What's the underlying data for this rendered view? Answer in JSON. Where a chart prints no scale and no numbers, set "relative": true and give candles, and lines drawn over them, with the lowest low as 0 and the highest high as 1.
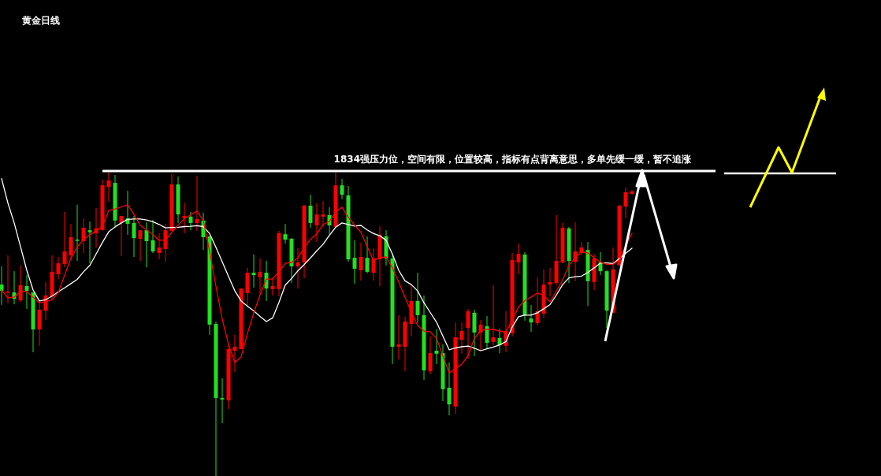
{
  "chart_data": {
    "type": "candlestick",
    "title": "黄金日线",
    "relative": true,
    "categories": [
      null,
      null,
      null,
      null,
      null,
      null,
      null,
      null,
      null,
      null,
      null,
      null,
      null,
      null,
      null,
      null,
      null,
      null,
      null,
      null,
      null,
      null,
      null,
      null,
      null,
      null,
      null,
      null,
      null,
      null,
      null,
      null,
      null,
      null,
      null,
      null,
      null,
      null,
      null,
      null,
      null,
      null,
      null,
      null,
      null,
      null,
      null,
      null,
      null,
      null,
      null,
      null,
      null,
      null,
      null,
      null,
      null,
      null,
      null,
      null,
      null,
      null,
      null,
      null,
      null,
      null,
      null,
      null,
      null,
      null,
      null,
      null,
      null,
      null,
      null,
      null,
      null,
      null,
      null,
      null,
      null,
      null,
      null,
      null,
      null,
      null,
      null,
      null,
      null,
      null,
      null,
      null,
      null,
      null,
      null,
      null,
      null,
      null,
      null,
      null,
      null
    ],
    "ohlc": [
      [
        0.631,
        0.691,
        0.564,
        0.61
      ],
      [
        0.605,
        0.727,
        0.569,
        0.608
      ],
      [
        0.605,
        0.675,
        0.566,
        0.584
      ],
      [
        0.579,
        0.694,
        0.574,
        0.629
      ],
      [
        0.626,
        0.662,
        0.551,
        0.61
      ],
      [
        0.605,
        0.605,
        0.408,
        0.483
      ],
      [
        0.483,
        0.574,
        0.429,
        0.548
      ],
      [
        0.545,
        0.639,
        0.514,
        0.595
      ],
      [
        0.592,
        0.727,
        0.582,
        0.673
      ],
      [
        0.665,
        0.722,
        0.649,
        0.701
      ],
      [
        0.699,
        0.87,
        0.688,
        0.74
      ],
      [
        0.727,
        0.831,
        0.714,
        0.787
      ],
      [
        0.779,
        0.894,
        0.709,
        0.777
      ],
      [
        0.774,
        0.849,
        0.735,
        0.818
      ],
      [
        0.81,
        0.839,
        0.701,
        0.803
      ],
      [
        0.8,
        0.883,
        0.753,
        0.816
      ],
      [
        0.81,
        0.977,
        0.81,
        0.958
      ],
      [
        0.953,
        1.0,
        0.904,
        0.974
      ],
      [
        0.966,
        0.992,
        0.823,
        0.842
      ],
      [
        0.834,
        0.857,
        0.725,
        0.857
      ],
      [
        0.849,
        0.94,
        0.795,
        0.831
      ],
      [
        0.834,
        0.857,
        0.722,
        0.784
      ],
      [
        0.782,
        0.81,
        0.709,
        0.81
      ],
      [
        0.81,
        0.836,
        0.688,
        0.774
      ],
      [
        0.777,
        0.844,
        0.735,
        0.74
      ],
      [
        0.735,
        0.8,
        0.714,
        0.753
      ],
      [
        0.748,
        0.831,
        0.706,
        0.81
      ],
      [
        0.808,
        0.995,
        0.808,
        0.961
      ],
      [
        0.961,
        0.987,
        0.834,
        0.862
      ],
      [
        0.849,
        0.901,
        0.8,
        0.857
      ],
      [
        0.855,
        0.87,
        0.81,
        0.834
      ],
      [
        0.834,
        0.99,
        0.808,
        0.847
      ],
      [
        0.842,
        0.868,
        0.745,
        0.787
      ],
      [
        0.79,
        0.79,
        0.465,
        0.499
      ],
      [
        0.501,
        0.509,
        0.0,
        0.257
      ],
      [
        0.257,
        0.322,
        0.174,
        0.252
      ],
      [
        0.249,
        0.434,
        0.221,
        0.418
      ],
      [
        0.413,
        0.465,
        0.343,
        0.426
      ],
      [
        0.418,
        0.618,
        0.418,
        0.618
      ],
      [
        0.603,
        0.686,
        0.556,
        0.67
      ],
      [
        0.67,
        0.73,
        0.621,
        0.662
      ],
      [
        0.655,
        0.717,
        0.6,
        0.673
      ],
      [
        0.67,
        0.709,
        0.577,
        0.618
      ],
      [
        0.616,
        0.655,
        0.595,
        0.626
      ],
      [
        0.616,
        0.808,
        0.592,
        0.8
      ],
      [
        0.797,
        0.831,
        0.766,
        0.779
      ],
      [
        0.782,
        0.784,
        0.636,
        0.691
      ],
      [
        0.691,
        0.751,
        0.618,
        0.704
      ],
      [
        0.704,
        0.894,
        0.652,
        0.891
      ],
      [
        0.891,
        0.927,
        0.818,
        0.834
      ],
      [
        0.826,
        0.899,
        0.771,
        0.862
      ],
      [
        0.855,
        0.906,
        0.821,
        0.862
      ],
      [
        0.86,
        0.886,
        0.797,
        0.826
      ],
      [
        0.821,
        1.0,
        0.821,
        0.958
      ],
      [
        0.958,
        0.979,
        0.912,
        0.927
      ],
      [
        0.925,
        0.956,
        0.706,
        0.714
      ],
      [
        0.719,
        0.777,
        0.634,
        0.683
      ],
      [
        0.678,
        0.769,
        0.644,
        0.722
      ],
      [
        0.719,
        0.79,
        0.668,
        0.673
      ],
      [
        0.67,
        0.751,
        0.644,
        0.717
      ],
      [
        0.714,
        0.823,
        0.626,
        0.795
      ],
      [
        0.79,
        0.81,
        0.694,
        0.717
      ],
      [
        0.717,
        0.73,
        0.369,
        0.426
      ],
      [
        0.426,
        0.53,
        0.384,
        0.434
      ],
      [
        0.426,
        0.525,
        0.345,
        0.509
      ],
      [
        0.501,
        0.629,
        0.46,
        0.577
      ],
      [
        0.577,
        0.67,
        0.506,
        0.53
      ],
      [
        0.53,
        0.595,
        0.317,
        0.348
      ],
      [
        0.345,
        0.46,
        0.335,
        0.405
      ],
      [
        0.413,
        0.483,
        0.369,
        0.403
      ],
      [
        0.405,
        0.434,
        0.247,
        0.286
      ],
      [
        0.291,
        0.374,
        0.2,
        0.236
      ],
      [
        0.229,
        0.506,
        0.205,
        0.457
      ],
      [
        0.449,
        0.506,
        0.403,
        0.478
      ],
      [
        0.488,
        0.551,
        0.387,
        0.543
      ],
      [
        0.538,
        0.548,
        0.395,
        0.473
      ],
      [
        0.473,
        0.514,
        0.413,
        0.499
      ],
      [
        0.494,
        0.527,
        0.418,
        0.439
      ],
      [
        0.442,
        0.629,
        0.431,
        0.457
      ],
      [
        0.455,
        0.486,
        0.405,
        0.431
      ],
      [
        0.429,
        0.543,
        0.408,
        0.478
      ],
      [
        0.47,
        0.735,
        0.46,
        0.712
      ],
      [
        0.704,
        0.766,
        0.665,
        0.732
      ],
      [
        0.73,
        0.738,
        0.512,
        0.53
      ],
      [
        0.519,
        0.564,
        0.475,
        0.506
      ],
      [
        0.504,
        0.655,
        0.496,
        0.543
      ],
      [
        0.535,
        0.681,
        0.522,
        0.631
      ],
      [
        0.631,
        0.686,
        0.592,
        0.639
      ],
      [
        0.636,
        0.86,
        0.629,
        0.709
      ],
      [
        0.704,
        0.834,
        0.701,
        0.818
      ],
      [
        0.816,
        0.821,
        0.636,
        0.709
      ],
      [
        0.706,
        0.836,
        0.642,
        0.74
      ],
      [
        0.735,
        0.771,
        0.727,
        0.753
      ],
      [
        0.745,
        0.771,
        0.561,
        0.642
      ],
      [
        0.639,
        0.732,
        0.613,
        0.717
      ],
      [
        0.704,
        0.738,
        0.662,
        0.675
      ],
      [
        0.675,
        0.678,
        0.488,
        0.545
      ],
      [
        0.538,
        0.753,
        0.538,
        0.681
      ],
      [
        0.694,
        0.894,
        0.694,
        0.891
      ],
      [
        0.888,
        0.951,
        0.849,
        0.935
      ],
      [
        0.93,
        0.943,
        0.927,
        0.938
      ]
    ],
    "series": [
      {
        "type": "line",
        "color": "#ffffff",
        "values": [
          0.98,
          0.9,
          0.834,
          0.756,
          0.678,
          0.613,
          0.577,
          0.581,
          0.593,
          0.607,
          0.62,
          0.634,
          0.648,
          0.673,
          0.694,
          0.732,
          0.77,
          0.805,
          0.821,
          0.834,
          0.846,
          0.847,
          0.847,
          0.844,
          0.838,
          0.829,
          0.818,
          0.819,
          0.82,
          0.822,
          0.823,
          0.825,
          0.822,
          0.799,
          0.754,
          0.706,
          0.658,
          0.61,
          0.577,
          0.56,
          0.544,
          0.526,
          0.509,
          0.521,
          0.572,
          0.629,
          0.651,
          0.676,
          0.697,
          0.719,
          0.742,
          0.764,
          0.793,
          0.82,
          0.834,
          0.829,
          0.824,
          0.826,
          0.811,
          0.799,
          0.792,
          0.777,
          0.731,
          0.678,
          0.643,
          0.631,
          0.61,
          0.571,
          0.539,
          0.507,
          0.461,
          0.416,
          0.422,
          0.426,
          0.428,
          0.421,
          0.413,
          0.419,
          0.425,
          0.432,
          0.443,
          0.491,
          0.525,
          0.53,
          0.53,
          0.538,
          0.551,
          0.565,
          0.596,
          0.631,
          0.653,
          0.657,
          0.659,
          0.671,
          0.686,
          0.702,
          0.702,
          0.7,
          0.717,
          0.734,
          0.751
        ]
      },
      {
        "type": "line",
        "color": "#ff0000",
        "values": [
          0.613,
          0.587,
          0.59,
          0.608,
          0.608,
          0.589,
          0.571,
          0.574,
          0.581,
          0.605,
          0.662,
          0.717,
          0.755,
          0.779,
          0.795,
          0.807,
          0.824,
          0.875,
          0.88,
          0.887,
          0.894,
          0.862,
          0.826,
          0.811,
          0.796,
          0.777,
          0.777,
          0.803,
          0.827,
          0.848,
          0.861,
          0.873,
          0.842,
          0.74,
          0.626,
          0.517,
          0.434,
          0.374,
          0.393,
          0.47,
          0.538,
          0.597,
          0.649,
          0.649,
          0.674,
          0.701,
          0.704,
          0.719,
          0.753,
          0.78,
          0.798,
          0.829,
          0.839,
          0.87,
          0.886,
          0.853,
          0.827,
          0.803,
          0.756,
          0.709,
          0.72,
          0.722,
          0.686,
          0.639,
          0.589,
          0.54,
          0.496,
          0.478,
          0.475,
          0.454,
          0.395,
          0.34,
          0.353,
          0.369,
          0.396,
          0.454,
          0.478,
          0.484,
          0.483,
          0.478,
          0.473,
          0.514,
          0.557,
          0.578,
          0.59,
          0.603,
          0.595,
          0.574,
          0.609,
          0.646,
          0.694,
          0.719,
          0.74,
          0.735,
          0.719,
          0.705,
          0.698,
          0.698,
          0.711,
          0.76,
          0.8
        ]
      }
    ],
    "ref_lines": [
      {
        "axis": "y",
        "value": 1.005,
        "color": "#ffffff",
        "label": "1834强压力位，空间有限，位置较高，指标有点背离意思，多单先缓一缓，暂不追涨"
      }
    ]
  }
}
